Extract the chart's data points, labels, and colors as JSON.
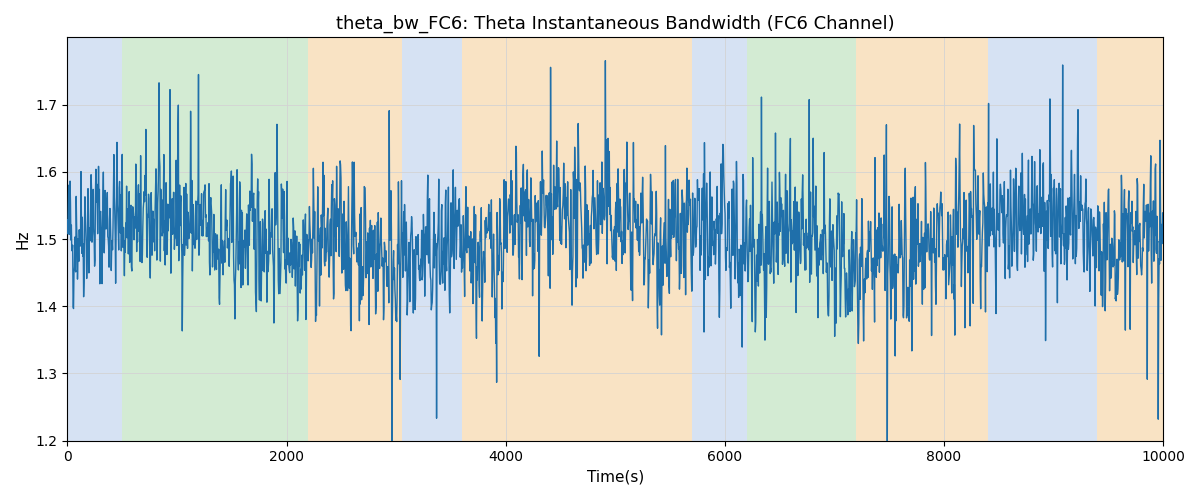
{
  "title": "theta_bw_FC6: Theta Instantaneous Bandwidth (FC6 Channel)",
  "xlabel": "Time(s)",
  "ylabel": "Hz",
  "xlim": [
    0,
    10000
  ],
  "ylim": [
    1.2,
    1.8
  ],
  "yticks": [
    1.2,
    1.3,
    1.4,
    1.5,
    1.6,
    1.7
  ],
  "xticks": [
    0,
    2000,
    4000,
    6000,
    8000,
    10000
  ],
  "line_color": "#1f6faa",
  "line_width": 1.0,
  "bg_color": "#ffffff",
  "regions": [
    {
      "xmin": 0,
      "xmax": 500,
      "color": "#aec6e8",
      "alpha": 0.5
    },
    {
      "xmin": 500,
      "xmax": 2200,
      "color": "#a8d8a8",
      "alpha": 0.5
    },
    {
      "xmin": 2200,
      "xmax": 3050,
      "color": "#f5c98a",
      "alpha": 0.5
    },
    {
      "xmin": 3050,
      "xmax": 3600,
      "color": "#aec6e8",
      "alpha": 0.5
    },
    {
      "xmin": 3600,
      "xmax": 5700,
      "color": "#f5c98a",
      "alpha": 0.5
    },
    {
      "xmin": 5700,
      "xmax": 6200,
      "color": "#aec6e8",
      "alpha": 0.5
    },
    {
      "xmin": 6200,
      "xmax": 7200,
      "color": "#a8d8a8",
      "alpha": 0.5
    },
    {
      "xmin": 7200,
      "xmax": 8400,
      "color": "#f5c98a",
      "alpha": 0.5
    },
    {
      "xmin": 8400,
      "xmax": 9400,
      "color": "#aec6e8",
      "alpha": 0.5
    },
    {
      "xmin": 9400,
      "xmax": 10000,
      "color": "#f5c98a",
      "alpha": 0.5
    }
  ],
  "seed": 42,
  "n_points": 2500,
  "signal_mean": 1.5,
  "title_fontsize": 13,
  "label_fontsize": 11,
  "tick_fontsize": 10
}
